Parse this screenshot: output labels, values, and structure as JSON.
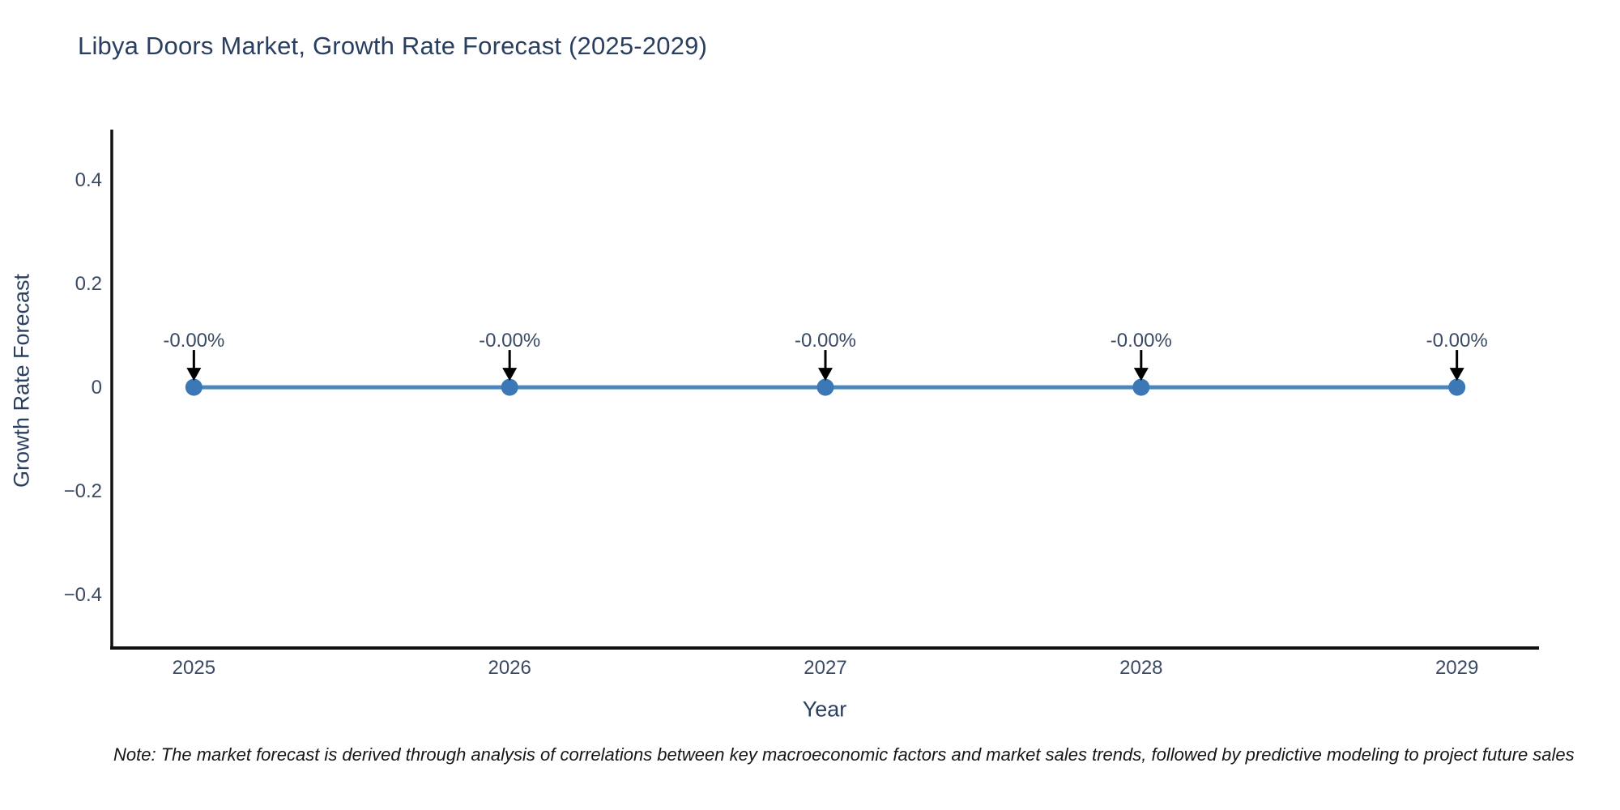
{
  "title": "Libya Doors Market, Growth Rate Forecast (2025-2029)",
  "note": "Note: The market forecast is derived through analysis of correlations between key macroeconomic factors and market sales trends, followed by predictive modeling to project future sales",
  "chart_data": {
    "type": "line",
    "title": "Libya Doors Market, Growth Rate Forecast (2025-2029)",
    "xlabel": "Year",
    "ylabel": "Growth Rate Forecast",
    "x": [
      2025,
      2026,
      2027,
      2028,
      2029
    ],
    "x_tick_labels": [
      "2025",
      "2026",
      "2027",
      "2028",
      "2029"
    ],
    "series": [
      {
        "name": "Growth Rate Forecast",
        "values": [
          -0.0,
          -0.0,
          -0.0,
          -0.0,
          -0.0
        ],
        "point_labels": [
          "-0.00%",
          "-0.00%",
          "-0.00%",
          "-0.00%",
          "-0.00%"
        ]
      }
    ],
    "y_ticks": [
      {
        "value": 0.4,
        "label": "0.4"
      },
      {
        "value": 0.2,
        "label": "0.2"
      },
      {
        "value": 0,
        "label": "0"
      },
      {
        "value": -0.2,
        "label": "−0.2"
      },
      {
        "value": -0.4,
        "label": "−0.4"
      }
    ],
    "xlim": [
      2024.74,
      2029.26
    ],
    "ylim": [
      -0.503,
      0.497
    ],
    "grid": false,
    "legend_position": "none",
    "colors": {
      "line": "#4d86bb",
      "marker": "#3b78b5",
      "arrow": "#000000",
      "axis": "#111111",
      "title_text": "#2a3f5f",
      "axis_title_text": "#2a3f5f",
      "tick_text": "#3b4a63",
      "note_text": "#161616"
    }
  }
}
